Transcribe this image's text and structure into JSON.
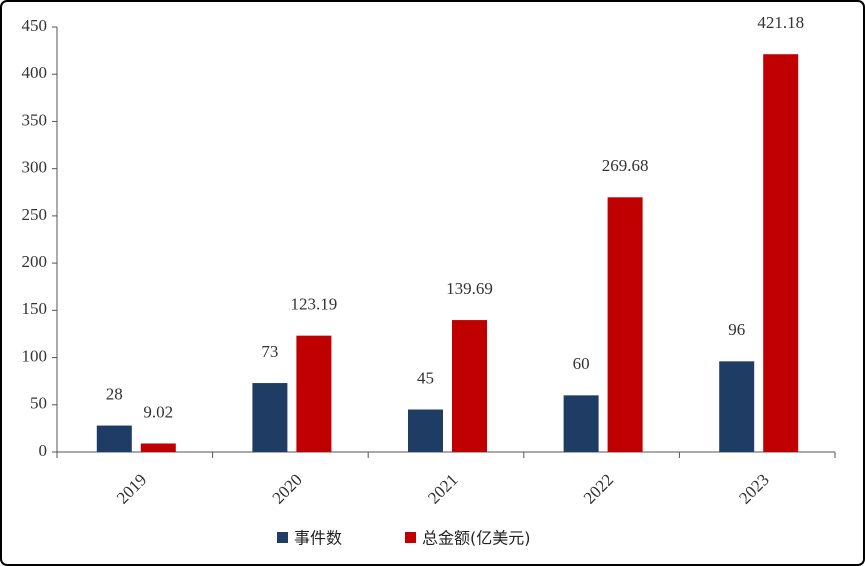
{
  "chart_data": {
    "type": "bar",
    "categories": [
      "2019",
      "2020",
      "2021",
      "2022",
      "2023"
    ],
    "series": [
      {
        "name": "事件数",
        "color": "#1f3d64",
        "values": [
          28,
          73,
          45,
          60,
          96
        ]
      },
      {
        "name": "总金额(亿美元)",
        "color": "#c00000",
        "values": [
          9.02,
          123.19,
          139.69,
          269.68,
          421.18
        ]
      }
    ],
    "ylim": [
      0,
      450
    ],
    "yticks": [
      0,
      50,
      100,
      150,
      200,
      250,
      300,
      350,
      400,
      450
    ],
    "legend": "bottom"
  }
}
